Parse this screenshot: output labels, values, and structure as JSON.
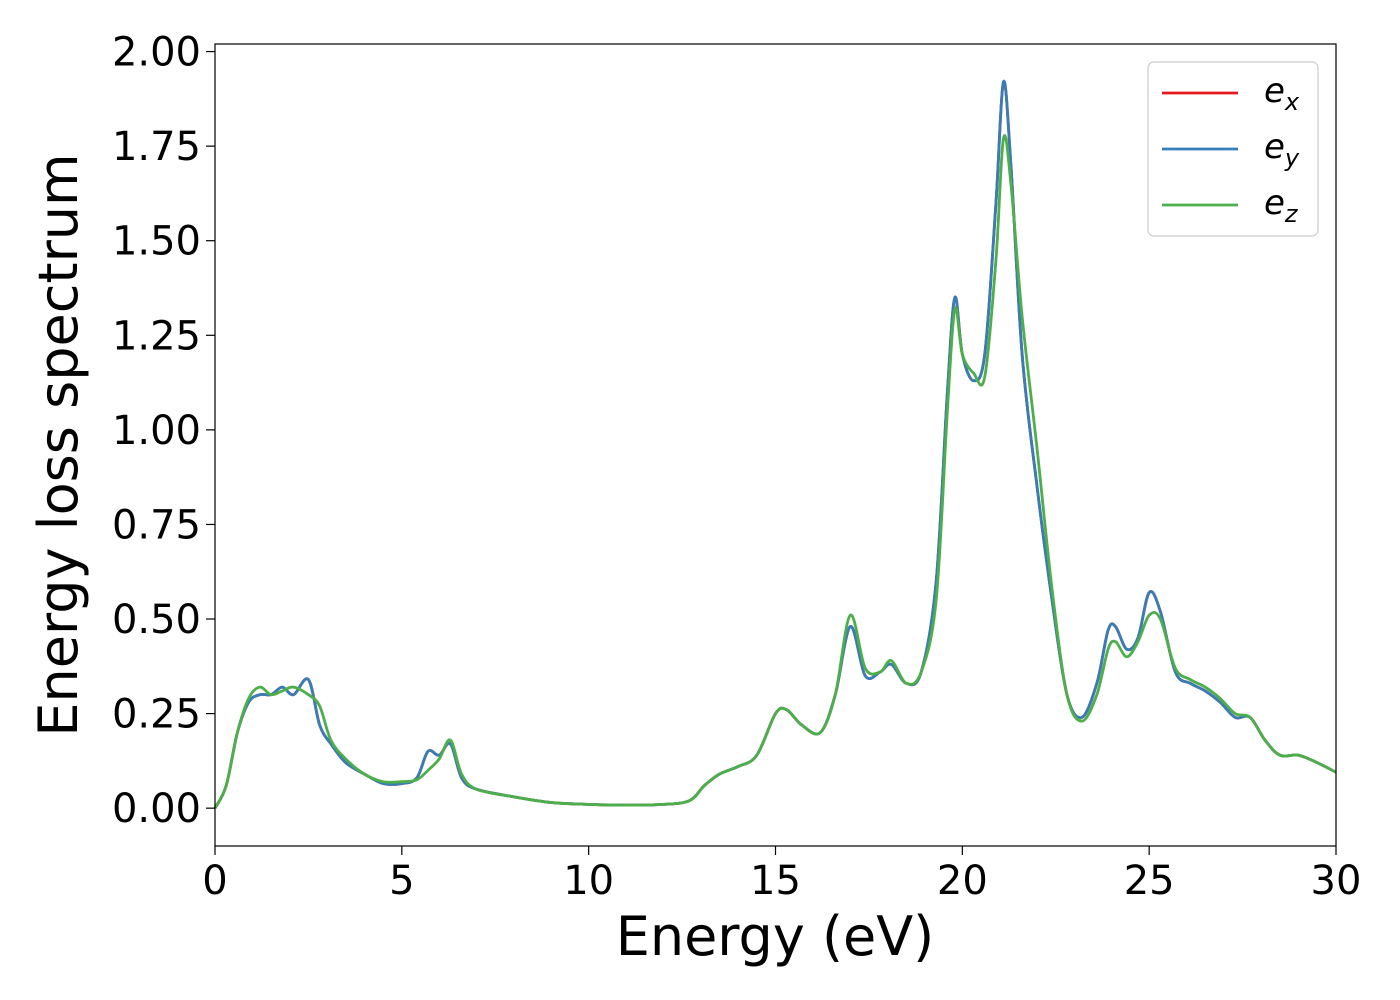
{
  "chart_data": {
    "type": "line",
    "xlabel": "Energy (eV)",
    "ylabel": "Energy loss spectrum",
    "xlim": [
      0,
      30
    ],
    "ylim": [
      -0.1,
      2.02
    ],
    "xticks": [
      "0",
      "5",
      "10",
      "15",
      "20",
      "25",
      "30"
    ],
    "yticks": [
      "0.00",
      "0.25",
      "0.50",
      "0.75",
      "1.00",
      "1.25",
      "1.50",
      "1.75",
      "2.00"
    ],
    "grid": false,
    "legend_position": "top-right",
    "series": [
      {
        "name": "e_x",
        "label_main": "e",
        "label_sub": "x",
        "color": "#e41a1c",
        "x": [
          0,
          0.3,
          0.6,
          0.9,
          1.2,
          1.5,
          1.8,
          2.1,
          2.5,
          2.8,
          3.1,
          3.5,
          4.0,
          4.5,
          5.0,
          5.4,
          5.7,
          6.0,
          6.3,
          6.6,
          7.0,
          8.0,
          9.0,
          10.0,
          11.0,
          12.0,
          12.7,
          13.1,
          13.5,
          14.0,
          14.5,
          15.0,
          15.3,
          15.7,
          16.2,
          16.6,
          17.0,
          17.4,
          17.8,
          18.1,
          18.5,
          18.9,
          19.3,
          19.6,
          19.8,
          20.0,
          20.3,
          20.6,
          20.9,
          21.1,
          21.3,
          21.6,
          22.0,
          22.4,
          22.8,
          23.2,
          23.6,
          23.9,
          24.1,
          24.4,
          24.7,
          25.0,
          25.3,
          25.7,
          26.1,
          26.5,
          26.9,
          27.3,
          27.7,
          28.1,
          28.5,
          29.0,
          29.5,
          30.0
        ],
        "y": [
          0.0,
          0.06,
          0.2,
          0.28,
          0.3,
          0.3,
          0.32,
          0.3,
          0.34,
          0.22,
          0.17,
          0.12,
          0.09,
          0.065,
          0.065,
          0.08,
          0.15,
          0.14,
          0.17,
          0.08,
          0.05,
          0.03,
          0.015,
          0.01,
          0.008,
          0.01,
          0.02,
          0.06,
          0.09,
          0.11,
          0.14,
          0.25,
          0.26,
          0.22,
          0.2,
          0.3,
          0.48,
          0.35,
          0.36,
          0.38,
          0.33,
          0.36,
          0.6,
          1.1,
          1.35,
          1.2,
          1.13,
          1.2,
          1.6,
          1.92,
          1.7,
          1.2,
          0.85,
          0.55,
          0.3,
          0.24,
          0.33,
          0.47,
          0.48,
          0.42,
          0.45,
          0.57,
          0.52,
          0.36,
          0.33,
          0.31,
          0.28,
          0.24,
          0.24,
          0.18,
          0.14,
          0.14,
          0.12,
          0.095
        ]
      },
      {
        "name": "e_y",
        "label_main": "e",
        "label_sub": "y",
        "color": "#377eb8",
        "x": [
          0,
          0.3,
          0.6,
          0.9,
          1.2,
          1.5,
          1.8,
          2.1,
          2.5,
          2.8,
          3.1,
          3.5,
          4.0,
          4.5,
          5.0,
          5.4,
          5.7,
          6.0,
          6.3,
          6.6,
          7.0,
          8.0,
          9.0,
          10.0,
          11.0,
          12.0,
          12.7,
          13.1,
          13.5,
          14.0,
          14.5,
          15.0,
          15.3,
          15.7,
          16.2,
          16.6,
          17.0,
          17.4,
          17.8,
          18.1,
          18.5,
          18.9,
          19.3,
          19.6,
          19.8,
          20.0,
          20.3,
          20.6,
          20.9,
          21.1,
          21.3,
          21.6,
          22.0,
          22.4,
          22.8,
          23.2,
          23.6,
          23.9,
          24.1,
          24.4,
          24.7,
          25.0,
          25.3,
          25.7,
          26.1,
          26.5,
          26.9,
          27.3,
          27.7,
          28.1,
          28.5,
          29.0,
          29.5,
          30.0
        ],
        "y": [
          0.0,
          0.06,
          0.2,
          0.28,
          0.3,
          0.3,
          0.32,
          0.3,
          0.34,
          0.22,
          0.17,
          0.12,
          0.09,
          0.065,
          0.065,
          0.08,
          0.15,
          0.14,
          0.17,
          0.08,
          0.05,
          0.03,
          0.015,
          0.01,
          0.008,
          0.01,
          0.02,
          0.06,
          0.09,
          0.11,
          0.14,
          0.25,
          0.26,
          0.22,
          0.2,
          0.3,
          0.48,
          0.35,
          0.36,
          0.38,
          0.33,
          0.36,
          0.6,
          1.1,
          1.35,
          1.2,
          1.13,
          1.2,
          1.6,
          1.92,
          1.7,
          1.2,
          0.85,
          0.55,
          0.3,
          0.24,
          0.33,
          0.47,
          0.48,
          0.42,
          0.45,
          0.57,
          0.52,
          0.36,
          0.33,
          0.31,
          0.28,
          0.24,
          0.24,
          0.18,
          0.14,
          0.14,
          0.12,
          0.095
        ]
      },
      {
        "name": "e_z",
        "label_main": "e",
        "label_sub": "z",
        "color": "#4daf4a",
        "x": [
          0,
          0.3,
          0.6,
          0.9,
          1.2,
          1.5,
          1.8,
          2.1,
          2.5,
          2.8,
          3.1,
          3.5,
          4.0,
          4.5,
          5.0,
          5.4,
          5.7,
          6.0,
          6.3,
          6.6,
          7.0,
          8.0,
          9.0,
          10.0,
          11.0,
          12.0,
          12.7,
          13.1,
          13.5,
          14.0,
          14.5,
          15.0,
          15.3,
          15.7,
          16.2,
          16.6,
          17.0,
          17.4,
          17.8,
          18.1,
          18.5,
          18.9,
          19.3,
          19.6,
          19.8,
          20.0,
          20.3,
          20.6,
          20.9,
          21.1,
          21.3,
          21.6,
          22.0,
          22.4,
          22.8,
          23.2,
          23.6,
          23.9,
          24.1,
          24.4,
          24.7,
          25.0,
          25.3,
          25.7,
          26.1,
          26.5,
          26.9,
          27.3,
          27.7,
          28.1,
          28.5,
          29.0,
          29.5,
          30.0
        ],
        "y": [
          0.0,
          0.06,
          0.2,
          0.29,
          0.32,
          0.3,
          0.31,
          0.32,
          0.3,
          0.27,
          0.18,
          0.13,
          0.09,
          0.07,
          0.07,
          0.075,
          0.1,
          0.13,
          0.18,
          0.09,
          0.05,
          0.03,
          0.015,
          0.01,
          0.008,
          0.01,
          0.02,
          0.06,
          0.09,
          0.11,
          0.14,
          0.25,
          0.26,
          0.22,
          0.2,
          0.3,
          0.51,
          0.37,
          0.36,
          0.39,
          0.33,
          0.36,
          0.55,
          1.05,
          1.32,
          1.2,
          1.15,
          1.14,
          1.45,
          1.77,
          1.65,
          1.3,
          0.95,
          0.58,
          0.3,
          0.23,
          0.3,
          0.42,
          0.44,
          0.4,
          0.44,
          0.51,
          0.5,
          0.37,
          0.34,
          0.32,
          0.29,
          0.25,
          0.24,
          0.18,
          0.14,
          0.14,
          0.12,
          0.095
        ]
      }
    ]
  }
}
